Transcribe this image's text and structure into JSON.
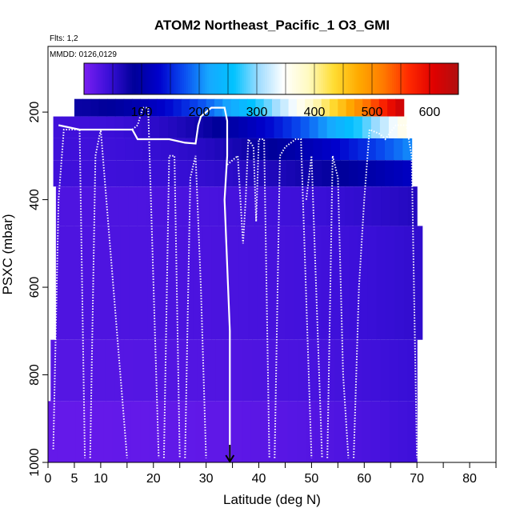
{
  "chart_data": {
    "type": "heatmap",
    "title": "ATOM2 Northeast_Pacific_1 O3_GMI",
    "subtitle_flights": "Flts: 1,2",
    "subtitle_dates": "MMDD: 0126,0129",
    "xlabel": "Latitude (deg N)",
    "ylabel": "PSXC (mbar)",
    "xlim": [
      0,
      85
    ],
    "ylim": [
      1000,
      50
    ],
    "y_reversed": true,
    "x_ticks": [
      0,
      5,
      10,
      20,
      30,
      40,
      50,
      60,
      70,
      80
    ],
    "x_minor_ticks": [
      15,
      25,
      35,
      45,
      55,
      65,
      75,
      85
    ],
    "y_ticks": [
      200,
      400,
      600,
      800,
      1000
    ],
    "grid": false,
    "colorbar": {
      "range": [
        0,
        650
      ],
      "ticks": [
        100,
        200,
        300,
        400,
        500,
        600
      ],
      "colors": [
        "#7a1ff2",
        "#3a0fd8",
        "#000099",
        "#0000cc",
        "#0a4cf0",
        "#17a8ff",
        "#00c3ff",
        "#9fdcff",
        "#ffffff",
        "#fffac0",
        "#ffdd33",
        "#ffaa00",
        "#ff7a00",
        "#ff2a00",
        "#e00000",
        "#b01010"
      ]
    },
    "marker_arrow_latitude": 34.5,
    "heatmap_rows": [
      {
        "p_top": 170,
        "p_bot": 210,
        "x_start": 5,
        "x_end": 67.5,
        "v_start": 80,
        "v_end": 620
      },
      {
        "p_top": 210,
        "p_bot": 260,
        "x_start": 1,
        "x_end": 68,
        "v_start": 40,
        "v_end": 360
      },
      {
        "p_top": 260,
        "p_bot": 310,
        "x_start": 1,
        "x_end": 69,
        "v_start": 40,
        "v_end": 200
      },
      {
        "p_top": 310,
        "p_bot": 370,
        "x_start": 1,
        "x_end": 69,
        "v_start": 40,
        "v_end": 120
      },
      {
        "p_top": 370,
        "p_bot": 460,
        "x_start": 1.5,
        "x_end": 70,
        "v_start": 30,
        "v_end": 60
      },
      {
        "p_top": 460,
        "p_bot": 720,
        "x_start": 1.5,
        "x_end": 71,
        "v_start": 30,
        "v_end": 50
      },
      {
        "p_top": 720,
        "p_bot": 860,
        "x_start": 0.5,
        "x_end": 70,
        "v_start": 25,
        "v_end": 45
      },
      {
        "p_top": 860,
        "p_bot": 1000,
        "x_start": 0,
        "x_end": 70,
        "v_start": 15,
        "v_end": 40
      }
    ],
    "flight_track_solid": [
      [
        2,
        230
      ],
      [
        6,
        240
      ],
      [
        16,
        240
      ],
      [
        17,
        262
      ],
      [
        23,
        262
      ],
      [
        26,
        270
      ],
      [
        28,
        272
      ],
      [
        28.5,
        230
      ],
      [
        29,
        210
      ],
      [
        31,
        190
      ],
      [
        33.5,
        190
      ],
      [
        34,
        220
      ],
      [
        34,
        300
      ],
      [
        33.5,
        400
      ],
      [
        34.5,
        700
      ],
      [
        34.5,
        1000
      ]
    ],
    "flight_track_dotted": [
      [
        [
          1,
          970
        ],
        [
          2,
          400
        ],
        [
          3,
          240
        ],
        [
          6,
          240
        ],
        [
          7,
          990
        ]
      ],
      [
        [
          8,
          990
        ],
        [
          9,
          300
        ],
        [
          10,
          240
        ],
        [
          15,
          990
        ]
      ],
      [
        [
          16,
          240
        ],
        [
          17,
          230
        ],
        [
          18,
          190
        ],
        [
          19,
          190
        ],
        [
          21,
          990
        ]
      ],
      [
        [
          22,
          990
        ],
        [
          23,
          300
        ],
        [
          24,
          300
        ],
        [
          25,
          990
        ]
      ],
      [
        [
          26,
          990
        ],
        [
          27,
          350
        ],
        [
          28,
          300
        ],
        [
          29,
          600
        ],
        [
          30,
          990
        ]
      ],
      [
        [
          34,
          320
        ],
        [
          36,
          300
        ],
        [
          37,
          500
        ],
        [
          37.5,
          400
        ],
        [
          38,
          262
        ],
        [
          39,
          280
        ],
        [
          39.5,
          450
        ],
        [
          40,
          262
        ],
        [
          41,
          262
        ],
        [
          42,
          990
        ]
      ],
      [
        [
          43,
          990
        ],
        [
          44,
          300
        ],
        [
          45,
          280
        ],
        [
          47,
          262
        ],
        [
          48,
          262
        ],
        [
          50,
          990
        ]
      ],
      [
        [
          49,
          400
        ],
        [
          50,
          300
        ],
        [
          52,
          990
        ]
      ],
      [
        [
          53,
          990
        ],
        [
          54,
          300
        ],
        [
          55,
          350
        ],
        [
          56,
          800
        ],
        [
          57,
          990
        ]
      ],
      [
        [
          58,
          990
        ],
        [
          59,
          600
        ],
        [
          60,
          400
        ],
        [
          61,
          240
        ],
        [
          63,
          250
        ],
        [
          64,
          262
        ],
        [
          66,
          230
        ],
        [
          68,
          230
        ],
        [
          69,
          300
        ],
        [
          70,
          990
        ]
      ]
    ]
  }
}
